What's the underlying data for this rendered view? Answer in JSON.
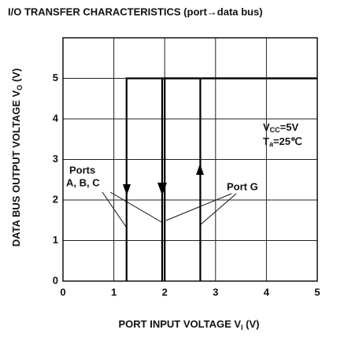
{
  "chart_data": {
    "type": "line",
    "title": "I/O TRANSFER CHARACTERISTICS (port→data bus)",
    "x_label": [
      "PORT INPUT VOLTAGE V",
      "I",
      " (V)"
    ],
    "y_label": [
      "DATA BUS OUTPUT VOLTAGE V",
      "O",
      " (V)"
    ],
    "xlim": [
      0,
      5
    ],
    "xticks": [
      0,
      1,
      2,
      3,
      4,
      5
    ],
    "ylim": [
      0,
      6
    ],
    "yticks": [
      0,
      1,
      2,
      3,
      4,
      5
    ],
    "grid": true,
    "series": [
      {
        "name": "Ports A, B, C",
        "color": "#000000",
        "x": [
          1.25,
          1.25,
          5,
          null,
          2.0,
          2.0
        ],
        "values": [
          0,
          5,
          5,
          null,
          5,
          0
        ]
      },
      {
        "name": "Port G",
        "color": "#000000",
        "x": [
          1.95,
          1.95,
          5,
          null,
          2.7,
          2.7
        ],
        "values": [
          0,
          5,
          5,
          null,
          5,
          0
        ]
      }
    ],
    "annotations": {
      "ports_abc": [
        "Ports",
        "A, B, C"
      ],
      "port_g": "Port G",
      "vcc": [
        "V",
        "CC",
        "=5V"
      ],
      "ta": [
        "T",
        "a",
        "=25℃"
      ]
    }
  }
}
